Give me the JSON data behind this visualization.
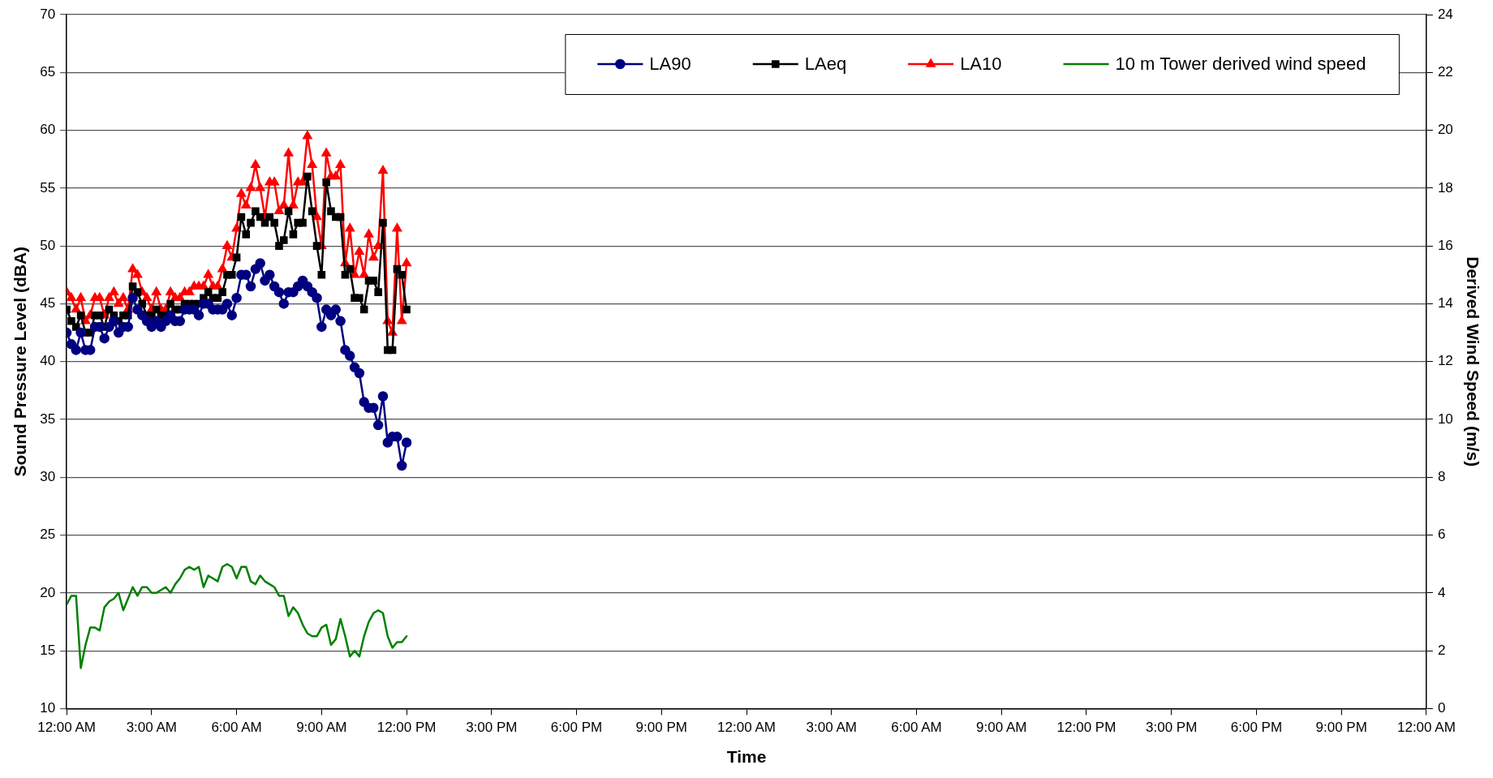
{
  "chart_data": {
    "type": "line",
    "xlabel": "Time",
    "ylabel": "Sound Pressure Level (dBA)",
    "y2label": "Derived Wind Speed (m/s)",
    "x": [
      "2000-01-01T00:00",
      "2000-01-01T00:10",
      "2000-01-01T00:20",
      "2000-01-01T00:30",
      "2000-01-01T00:40",
      "2000-01-01T00:50",
      "2000-01-01T01:00",
      "2000-01-01T01:10",
      "2000-01-01T01:20",
      "2000-01-01T01:30",
      "2000-01-01T01:40",
      "2000-01-01T01:50",
      "2000-01-01T02:00",
      "2000-01-01T02:10",
      "2000-01-01T02:20",
      "2000-01-01T02:30",
      "2000-01-01T02:40",
      "2000-01-01T02:50",
      "2000-01-01T03:00",
      "2000-01-01T03:10",
      "2000-01-01T03:20",
      "2000-01-01T03:30",
      "2000-01-01T03:40",
      "2000-01-01T03:50",
      "2000-01-01T04:00",
      "2000-01-01T04:10",
      "2000-01-01T04:20",
      "2000-01-01T04:30",
      "2000-01-01T04:40",
      "2000-01-01T04:50",
      "2000-01-01T05:00",
      "2000-01-01T05:10",
      "2000-01-01T05:20",
      "2000-01-01T05:30",
      "2000-01-01T05:40",
      "2000-01-01T05:50",
      "2000-01-01T06:00",
      "2000-01-01T06:10",
      "2000-01-01T06:20",
      "2000-01-01T06:30",
      "2000-01-01T06:40",
      "2000-01-01T06:50",
      "2000-01-01T07:00",
      "2000-01-01T07:10",
      "2000-01-01T07:20",
      "2000-01-01T07:30",
      "2000-01-01T07:40",
      "2000-01-01T07:50",
      "2000-01-01T08:00",
      "2000-01-01T08:10",
      "2000-01-01T08:20",
      "2000-01-01T08:30",
      "2000-01-01T08:40",
      "2000-01-01T08:50",
      "2000-01-01T09:00",
      "2000-01-01T09:10",
      "2000-01-01T09:20",
      "2000-01-01T09:30",
      "2000-01-01T09:40",
      "2000-01-01T09:50",
      "2000-01-01T10:00",
      "2000-01-01T10:10",
      "2000-01-01T10:20",
      "2000-01-01T10:30",
      "2000-01-01T10:40",
      "2000-01-01T10:50",
      "2000-01-01T11:00",
      "2000-01-01T11:10",
      "2000-01-01T11:20",
      "2000-01-01T11:30",
      "2000-01-01T11:40",
      "2000-01-01T11:50",
      "2000-01-01T12:00"
    ],
    "series": [
      {
        "name": "LA90",
        "color": "#000080",
        "marker": "circle",
        "values": [
          42.5,
          41.5,
          41,
          42.5,
          41,
          41,
          43,
          43,
          42,
          43,
          43.5,
          42.5,
          43,
          43,
          45.5,
          44.5,
          44,
          43.5,
          43,
          43.5,
          43,
          43.5,
          44,
          43.5,
          43.5,
          44.5,
          44.5,
          44.5,
          44,
          45,
          45,
          44.5,
          44.5,
          44.5,
          45,
          44,
          45.5,
          47.5,
          47.5,
          46.5,
          48,
          48.5,
          47,
          47.5,
          46.5,
          46,
          45,
          46,
          46,
          46.5,
          47,
          46.5,
          46,
          45.5,
          43,
          44.5,
          44,
          44.5,
          43.5,
          41,
          40.5,
          39.5,
          39,
          36.5,
          36,
          36,
          34.5,
          37,
          33,
          33.5,
          33.5,
          31,
          33
        ]
      },
      {
        "name": "LAeq",
        "color": "#000000",
        "marker": "square",
        "values": [
          44.5,
          43.5,
          43,
          44,
          42.5,
          42.5,
          44,
          44,
          43,
          44.5,
          44,
          43.5,
          44,
          44,
          46.5,
          46,
          45,
          44,
          44,
          44.5,
          44,
          44,
          45,
          44.5,
          44.5,
          45,
          45,
          45,
          45,
          45.5,
          46,
          45.5,
          45.5,
          46,
          47.5,
          47.5,
          49,
          52.5,
          51,
          52,
          53,
          52.5,
          52,
          52.5,
          52,
          50,
          50.5,
          53,
          51,
          52,
          52,
          56,
          53,
          50,
          47.5,
          55.5,
          53,
          52.5,
          52.5,
          47.5,
          48,
          45.5,
          45.5,
          44.5,
          47,
          47,
          46,
          52,
          41,
          41,
          48,
          47.5,
          44.5
        ]
      },
      {
        "name": "LA10",
        "color": "#ff0000",
        "marker": "triangle",
        "values": [
          46,
          45.5,
          44.5,
          45.5,
          43.5,
          44,
          45.5,
          45.5,
          44,
          45.5,
          46,
          45,
          45.5,
          44.5,
          48,
          47.5,
          46,
          45.5,
          44.5,
          46,
          44.5,
          44.5,
          46,
          45.5,
          45.5,
          46,
          46,
          46.5,
          46.5,
          46.5,
          47.5,
          46.5,
          46.5,
          48,
          50,
          49,
          51.5,
          54.5,
          53.5,
          55,
          57,
          55,
          52.5,
          55.5,
          55.5,
          53,
          53.5,
          58,
          53.5,
          55.5,
          55.5,
          59.5,
          57,
          52.5,
          50,
          58,
          56,
          56,
          57,
          48.5,
          51.5,
          47.5,
          49.5,
          47.5,
          51,
          49,
          50,
          56.5,
          43.5,
          42.5,
          51.5,
          43.5,
          48.5
        ]
      },
      {
        "name": "10 m Tower derived wind speed",
        "color": "#008000",
        "marker": "none",
        "axis": "y2",
        "values": [
          3.6,
          3.9,
          3.9,
          1.4,
          2.2,
          2.8,
          2.8,
          2.7,
          3.5,
          3.7,
          3.8,
          4,
          3.4,
          3.8,
          4.2,
          3.9,
          4.2,
          4.2,
          4,
          4,
          4.1,
          4.2,
          4,
          4.3,
          4.5,
          4.8,
          4.9,
          4.8,
          4.9,
          4.2,
          4.6,
          4.5,
          4.4,
          4.9,
          5,
          4.9,
          4.5,
          4.9,
          4.9,
          4.4,
          4.3,
          4.6,
          4.4,
          4.3,
          4.2,
          3.9,
          3.9,
          3.2,
          3.5,
          3.3,
          2.9,
          2.6,
          2.5,
          2.5,
          2.8,
          2.9,
          2.2,
          2.4,
          3.1,
          2.5,
          1.8,
          2,
          1.8,
          2.5,
          3,
          3.3,
          3.4,
          3.3,
          2.5,
          2.1,
          2.3,
          2.3,
          2.5
        ]
      }
    ],
    "xlim": [
      "2000-01-01T00:00",
      "2000-01-03T00:00"
    ],
    "xticks": [
      {
        "value": "2000-01-01T00:00",
        "label": "12:00 AM"
      },
      {
        "value": "2000-01-01T03:00",
        "label": "3:00 AM"
      },
      {
        "value": "2000-01-01T06:00",
        "label": "6:00 AM"
      },
      {
        "value": "2000-01-01T09:00",
        "label": "9:00 AM"
      },
      {
        "value": "2000-01-01T12:00",
        "label": "12:00 PM"
      },
      {
        "value": "2000-01-01T15:00",
        "label": "3:00 PM"
      },
      {
        "value": "2000-01-01T18:00",
        "label": "6:00 PM"
      },
      {
        "value": "2000-01-01T21:00",
        "label": "9:00 PM"
      },
      {
        "value": "2000-01-02T00:00",
        "label": "12:00 AM"
      },
      {
        "value": "2000-01-02T03:00",
        "label": "3:00 AM"
      },
      {
        "value": "2000-01-02T06:00",
        "label": "6:00 AM"
      },
      {
        "value": "2000-01-02T09:00",
        "label": "9:00 AM"
      },
      {
        "value": "2000-01-02T12:00",
        "label": "12:00 PM"
      },
      {
        "value": "2000-01-02T15:00",
        "label": "3:00 PM"
      },
      {
        "value": "2000-01-02T18:00",
        "label": "6:00 PM"
      },
      {
        "value": "2000-01-02T21:00",
        "label": "9:00 PM"
      },
      {
        "value": "2000-01-03T00:00",
        "label": "12:00 AM"
      }
    ],
    "ylim": [
      10,
      70
    ],
    "yticks": [
      10,
      15,
      20,
      25,
      30,
      35,
      40,
      45,
      50,
      55,
      60,
      65,
      70
    ],
    "y2lim": [
      0,
      24
    ],
    "y2ticks": [
      0,
      2,
      4,
      6,
      8,
      10,
      12,
      14,
      16,
      18,
      20,
      22,
      24
    ],
    "grid": "y",
    "legend": "top right",
    "line_style": "solid"
  }
}
